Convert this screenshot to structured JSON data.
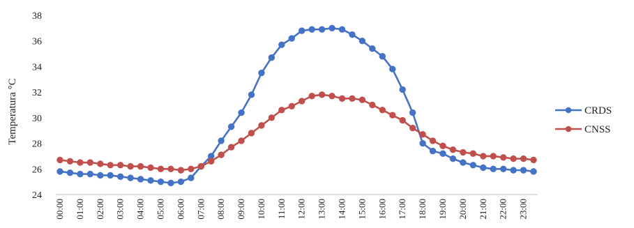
{
  "chart_data": {
    "type": "line",
    "title": "",
    "xlabel": "",
    "ylabel": "Temperatura °C",
    "ylim": [
      24,
      38
    ],
    "yticks": [
      24,
      26,
      28,
      30,
      32,
      34,
      36,
      38
    ],
    "grid": false,
    "legend_position": "right",
    "x": [
      "00:00",
      "00:30",
      "01:00",
      "01:30",
      "02:00",
      "02:30",
      "03:00",
      "03:30",
      "04:00",
      "04:30",
      "05:00",
      "05:30",
      "06:00",
      "06:30",
      "07:00",
      "07:30",
      "08:00",
      "08:30",
      "09:00",
      "09:30",
      "10:00",
      "10:30",
      "11:00",
      "11:30",
      "12:00",
      "12:30",
      "13:00",
      "13:30",
      "14:00",
      "14:30",
      "15:00",
      "15:30",
      "16:00",
      "16:30",
      "17:00",
      "17:30",
      "18:00",
      "18:30",
      "19:00",
      "19:30",
      "20:00",
      "20:30",
      "21:00",
      "21:30",
      "22:00",
      "22:30",
      "23:00",
      "23:30"
    ],
    "xtick_labels": [
      "00:00",
      "01:00",
      "02:00",
      "03:00",
      "04:00",
      "05:00",
      "06:00",
      "07:00",
      "08:00",
      "09:00",
      "10:00",
      "11:00",
      "12:00",
      "13:00",
      "14:00",
      "15:00",
      "16:00",
      "17:00",
      "18:00",
      "19:00",
      "20:00",
      "21:00",
      "22:00",
      "23:00"
    ],
    "series": [
      {
        "name": "CRDS",
        "color": "#4472C4",
        "values": [
          25.8,
          25.7,
          25.6,
          25.6,
          25.5,
          25.5,
          25.4,
          25.3,
          25.2,
          25.1,
          25.0,
          24.9,
          25.0,
          25.3,
          26.2,
          27.0,
          28.2,
          29.3,
          30.4,
          31.8,
          33.5,
          34.7,
          35.7,
          36.2,
          36.8,
          36.9,
          36.9,
          37.0,
          36.9,
          36.5,
          36.0,
          35.4,
          34.8,
          33.8,
          32.2,
          30.4,
          28.0,
          27.4,
          27.2,
          26.8,
          26.5,
          26.3,
          26.1,
          26.0,
          26.0,
          25.9,
          25.9,
          25.8
        ]
      },
      {
        "name": "CNSS",
        "color": "#C0504D",
        "values": [
          26.7,
          26.6,
          26.5,
          26.5,
          26.4,
          26.3,
          26.3,
          26.2,
          26.2,
          26.1,
          26.0,
          26.0,
          25.9,
          26.0,
          26.2,
          26.6,
          27.1,
          27.7,
          28.2,
          28.8,
          29.4,
          30.0,
          30.6,
          30.9,
          31.3,
          31.7,
          31.8,
          31.7,
          31.5,
          31.5,
          31.4,
          31.0,
          30.6,
          30.2,
          29.8,
          29.2,
          28.7,
          28.2,
          27.8,
          27.5,
          27.3,
          27.2,
          27.0,
          27.0,
          26.9,
          26.8,
          26.8,
          26.7
        ]
      }
    ]
  }
}
